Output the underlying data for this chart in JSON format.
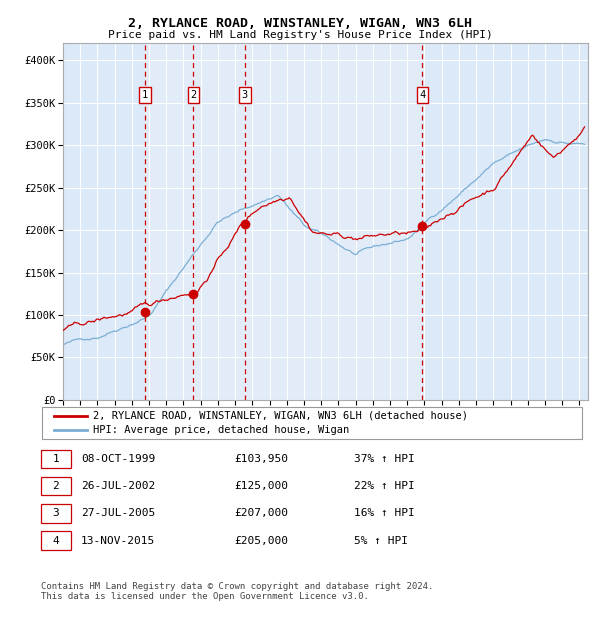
{
  "title": "2, RYLANCE ROAD, WINSTANLEY, WIGAN, WN3 6LH",
  "subtitle": "Price paid vs. HM Land Registry's House Price Index (HPI)",
  "ylim": [
    0,
    420000
  ],
  "yticks": [
    0,
    50000,
    100000,
    150000,
    200000,
    250000,
    300000,
    350000,
    400000
  ],
  "ytick_labels": [
    "£0",
    "£50K",
    "£100K",
    "£150K",
    "£200K",
    "£250K",
    "£300K",
    "£350K",
    "£400K"
  ],
  "xlim_start": 1995.0,
  "xlim_end": 2025.5,
  "bg_color": "#dce9f8",
  "grid_color": "#ffffff",
  "red_line_color": "#cc0000",
  "blue_line_color": "#7bafd4",
  "dashed_line_color": "#cc0000",
  "transactions": [
    {
      "num": 1,
      "date_label": "08-OCT-1999",
      "year": 1999.77,
      "price": 103950,
      "hpi_pct": "37%",
      "hpi_dir": "↑"
    },
    {
      "num": 2,
      "date_label": "26-JUL-2002",
      "year": 2002.57,
      "price": 125000,
      "hpi_pct": "22%",
      "hpi_dir": "↑"
    },
    {
      "num": 3,
      "date_label": "27-JUL-2005",
      "year": 2005.57,
      "price": 207000,
      "hpi_pct": "16%",
      "hpi_dir": "↑"
    },
    {
      "num": 4,
      "date_label": "13-NOV-2015",
      "year": 2015.87,
      "price": 205000,
      "hpi_pct": "5%",
      "hpi_dir": "↑"
    }
  ],
  "legend_red_label": "2, RYLANCE ROAD, WINSTANLEY, WIGAN, WN3 6LH (detached house)",
  "legend_blue_label": "HPI: Average price, detached house, Wigan",
  "footnote": "Contains HM Land Registry data © Crown copyright and database right 2024.\nThis data is licensed under the Open Government Licence v3.0.",
  "table_rows": [
    [
      "1",
      "08-OCT-1999",
      "£103,950",
      "37% ↑ HPI"
    ],
    [
      "2",
      "26-JUL-2002",
      "£125,000",
      "22% ↑ HPI"
    ],
    [
      "3",
      "27-JUL-2005",
      "£207,000",
      "16% ↑ HPI"
    ],
    [
      "4",
      "13-NOV-2015",
      "£205,000",
      "5% ↑ HPI"
    ]
  ]
}
